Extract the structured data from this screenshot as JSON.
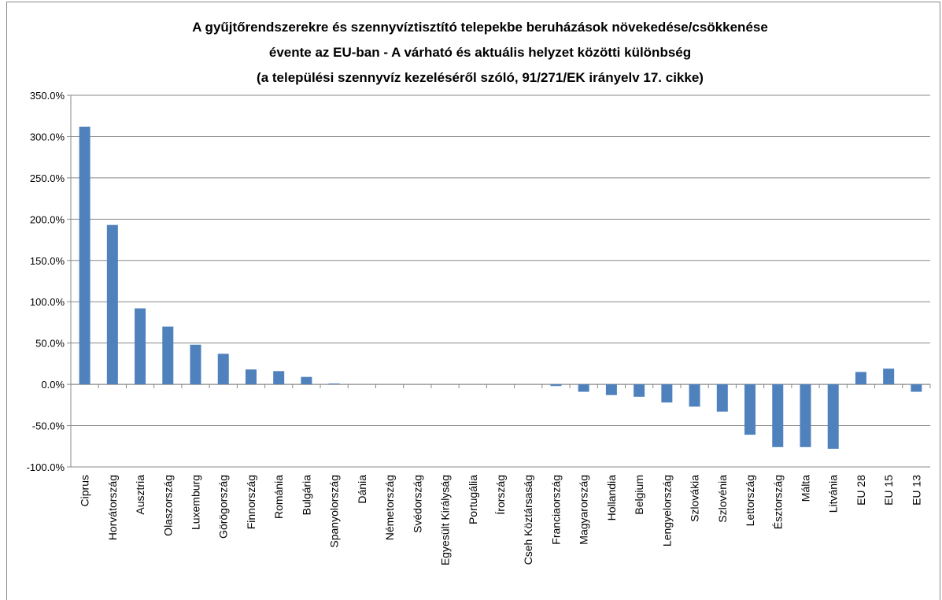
{
  "chart_data": {
    "type": "bar",
    "title": [
      "A gyűjtőrendszerekre és szennyvíztisztító telepekbe beruházások növekedése/csökkenése",
      "évente az EU-ban - A várható és aktuális helyzet közötti különbség",
      "(a települési szennyvíz kezeléséről szóló, 91/271/EK irányelv 17. cikke)"
    ],
    "categories": [
      "Ciprus",
      "Horvátország",
      "Ausztria",
      "Olaszország",
      "Luxemburg",
      "Görögország",
      "Finnország",
      "Románia",
      "Bulgária",
      "Spanyolország",
      "Dánia",
      "Németország",
      "Svédország",
      "Egyesült Királyság",
      "Portugália",
      "Írország",
      "Cseh Köztársaság",
      "Franciaország",
      "Magyarország",
      "Hollandia",
      "Belgium",
      "Lengyelország",
      "Szlovákia",
      "Szlovénia",
      "Lettország",
      "Észtország",
      "Málta",
      "Litvánia",
      "EU 28",
      "EU 15",
      "EU 13"
    ],
    "values": [
      312,
      193,
      92,
      70,
      48,
      37,
      18,
      16,
      9,
      1,
      0,
      0,
      0,
      0,
      0,
      0,
      0,
      -2,
      -9,
      -13,
      -15,
      -22,
      -27,
      -33,
      -61,
      -76,
      -76,
      -78,
      15,
      19,
      -9
    ],
    "color": "#4f81bd",
    "ylim": [
      -100,
      350
    ],
    "yticks": [
      {
        "value": -100,
        "label": "-100.0%"
      },
      {
        "value": -50,
        "label": "-50.0%"
      },
      {
        "value": 0,
        "label": "0.0%"
      },
      {
        "value": 50,
        "label": "50.0%"
      },
      {
        "value": 100,
        "label": "100.0%"
      },
      {
        "value": 150,
        "label": "150.0%"
      },
      {
        "value": 200,
        "label": "200.0%"
      },
      {
        "value": 250,
        "label": "250.0%"
      },
      {
        "value": 300,
        "label": "300.0%"
      },
      {
        "value": 350,
        "label": "350.0%"
      }
    ],
    "grid": true
  }
}
